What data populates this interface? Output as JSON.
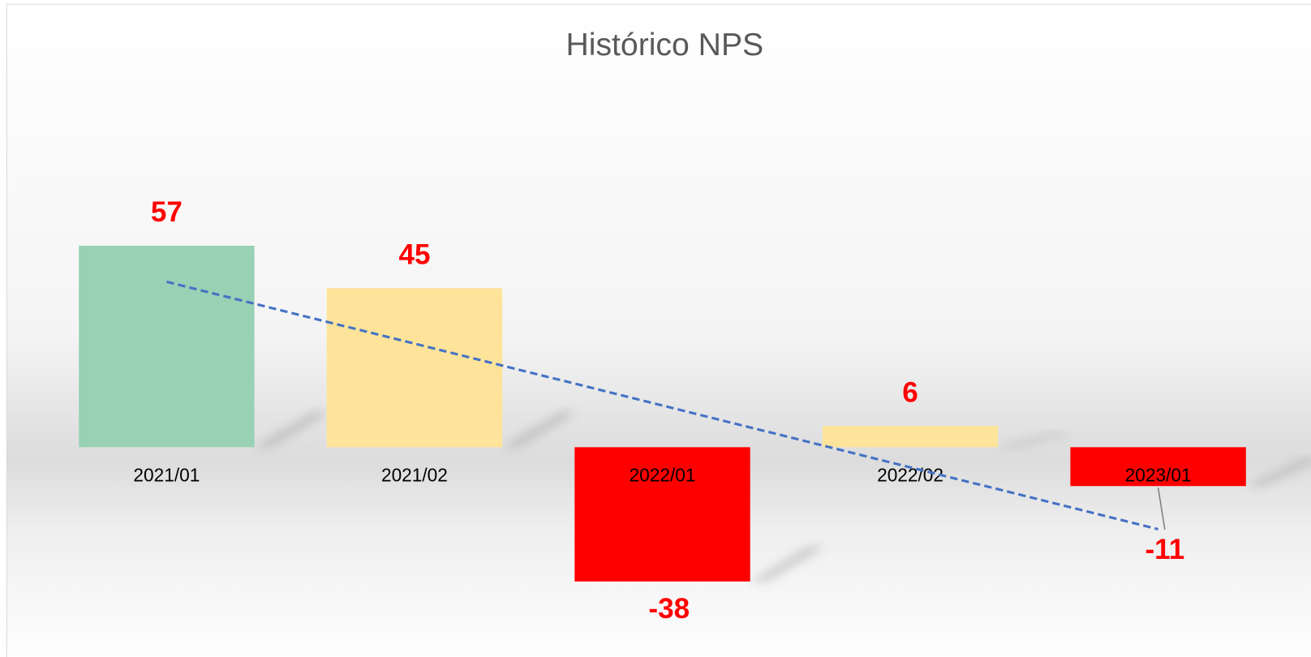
{
  "chart_data": {
    "type": "bar",
    "title": "Histórico NPS",
    "categories": [
      "2021/01",
      "2021/02",
      "2022/01",
      "2022/02",
      "2023/01"
    ],
    "values": [
      57,
      45,
      -38,
      6,
      -11
    ],
    "colors": [
      "#98d1b4",
      "#fde49a",
      "#ff0000",
      "#fde49a",
      "#ff0000"
    ],
    "label_color": "#ff0000",
    "trendline": {
      "type": "linear",
      "color": "#4472c4",
      "dashed": true
    }
  }
}
